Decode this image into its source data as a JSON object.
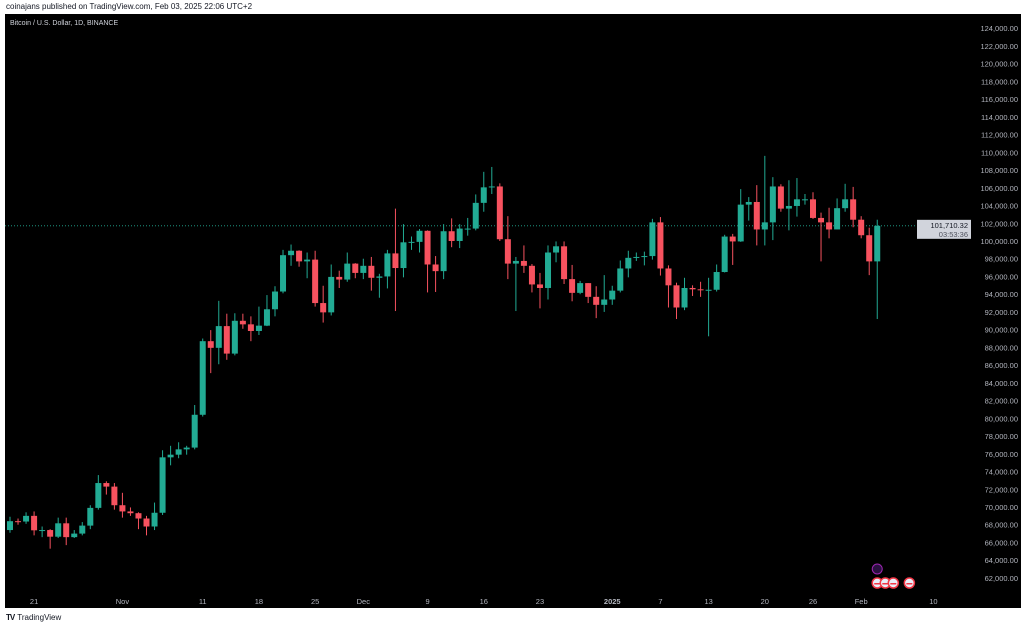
{
  "header": {
    "published": "coinajans published on TradingView.com, Feb 03, 2025 22:06 UTC+2"
  },
  "symbol_title": "Bitcoin / U.S. Dollar, 1D, BINANCE",
  "footer": {
    "brand": "TradingView",
    "logo_icon": "tradingview-logo-icon"
  },
  "colors": {
    "up": "#22ab94",
    "down": "#f7525f",
    "background": "#000000",
    "axis_text": "#b2b5be"
  },
  "chart_data": {
    "type": "candlestick",
    "title": "Bitcoin / U.S. Dollar, 1D, BINANCE",
    "ylim": [
      60300,
      125600
    ],
    "y_ticks": [
      "62,000.00",
      "64,000.00",
      "66,000.00",
      "68,000.00",
      "70,000.00",
      "72,000.00",
      "74,000.00",
      "76,000.00",
      "78,000.00",
      "80,000.00",
      "82,000.00",
      "84,000.00",
      "86,000.00",
      "88,000.00",
      "90,000.00",
      "92,000.00",
      "94,000.00",
      "96,000.00",
      "98,000.00",
      "100,000.00",
      "102,000.00",
      "104,000.00",
      "106,000.00",
      "108,000.00",
      "110,000.00",
      "112,000.00",
      "114,000.00",
      "116,000.00",
      "118,000.00",
      "120,000.00",
      "122,000.00",
      "124,000.00"
    ],
    "x_ticks": [
      {
        "label": "21",
        "date": "2024-10-21"
      },
      {
        "label": "Nov",
        "date": "2024-11-01"
      },
      {
        "label": "11",
        "date": "2024-11-11"
      },
      {
        "label": "18",
        "date": "2024-11-18"
      },
      {
        "label": "25",
        "date": "2024-11-25"
      },
      {
        "label": "Dec",
        "date": "2024-12-01"
      },
      {
        "label": "9",
        "date": "2024-12-09"
      },
      {
        "label": "16",
        "date": "2024-12-16"
      },
      {
        "label": "23",
        "date": "2024-12-23"
      },
      {
        "label": "2025",
        "date": "2025-01-01",
        "bold": true
      },
      {
        "label": "7",
        "date": "2025-01-07"
      },
      {
        "label": "13",
        "date": "2025-01-13"
      },
      {
        "label": "20",
        "date": "2025-01-20"
      },
      {
        "label": "26",
        "date": "2025-01-26"
      },
      {
        "label": "Feb",
        "date": "2025-02-01"
      },
      {
        "label": "10",
        "date": "2025-02-10"
      }
    ],
    "last_price": {
      "value": 101710.32,
      "label": "101,710.32",
      "countdown": "03:53:36"
    },
    "start_date": "2024-10-18",
    "ohlc": [
      [
        67400,
        68900,
        67100,
        68400
      ],
      [
        68400,
        68700,
        68000,
        68360
      ],
      [
        68360,
        69400,
        68100,
        69000
      ],
      [
        69000,
        69500,
        66800,
        67370
      ],
      [
        67370,
        67800,
        66600,
        67400
      ],
      [
        67400,
        67500,
        65300,
        66650
      ],
      [
        66650,
        68800,
        66500,
        68160
      ],
      [
        68160,
        68800,
        65700,
        66600
      ],
      [
        66600,
        67400,
        66500,
        67000
      ],
      [
        67000,
        68300,
        66800,
        67900
      ],
      [
        67900,
        70200,
        67500,
        69900
      ],
      [
        69900,
        73600,
        69700,
        72700
      ],
      [
        72700,
        72900,
        71400,
        72300
      ],
      [
        72300,
        72700,
        69700,
        70200
      ],
      [
        70200,
        71600,
        68800,
        69500
      ],
      [
        69500,
        69950,
        69000,
        69300
      ],
      [
        69300,
        69400,
        67500,
        68700
      ],
      [
        68700,
        69000,
        66800,
        67800
      ],
      [
        67800,
        70500,
        67400,
        69350
      ],
      [
        69350,
        76400,
        69100,
        75600
      ],
      [
        75600,
        76900,
        74700,
        75900
      ],
      [
        75900,
        77300,
        75500,
        76500
      ],
      [
        76500,
        76900,
        75900,
        76700
      ],
      [
        76700,
        81500,
        76500,
        80400
      ],
      [
        80400,
        89000,
        80200,
        88700
      ],
      [
        88700,
        89950,
        85100,
        87950
      ],
      [
        87950,
        93250,
        86100,
        90400
      ],
      [
        90400,
        91800,
        86600,
        87300
      ],
      [
        87300,
        91850,
        87100,
        91000
      ],
      [
        91000,
        91800,
        90100,
        90600
      ],
      [
        90600,
        91500,
        88700,
        89850
      ],
      [
        89850,
        92600,
        89400,
        90450
      ],
      [
        90450,
        93900,
        90400,
        92300
      ],
      [
        92300,
        94900,
        91500,
        94300
      ],
      [
        94300,
        99000,
        94100,
        98400
      ],
      [
        98400,
        99600,
        97200,
        98900
      ],
      [
        98900,
        98950,
        97100,
        97700
      ],
      [
        97700,
        98700,
        95800,
        97900
      ],
      [
        97900,
        98900,
        92600,
        93000
      ],
      [
        93000,
        94950,
        90800,
        91950
      ],
      [
        91950,
        97350,
        91600,
        95950
      ],
      [
        95950,
        96650,
        94700,
        95650
      ],
      [
        95650,
        98700,
        95400,
        97450
      ],
      [
        97450,
        97500,
        95800,
        96400
      ],
      [
        96400,
        98000,
        95700,
        97200
      ],
      [
        97200,
        98200,
        94400,
        95850
      ],
      [
        95850,
        96300,
        93600,
        96000
      ],
      [
        96000,
        99000,
        94650,
        98600
      ],
      [
        98600,
        103650,
        92100,
        96950
      ],
      [
        96950,
        101900,
        95900,
        99850
      ],
      [
        99850,
        100500,
        99000,
        99900
      ],
      [
        99900,
        101350,
        98700,
        101150
      ],
      [
        101150,
        101200,
        94200,
        97350
      ],
      [
        97350,
        98300,
        94250,
        96600
      ],
      [
        96600,
        101900,
        95700,
        101100
      ],
      [
        101100,
        102550,
        99300,
        100000
      ],
      [
        100000,
        101900,
        99200,
        101400
      ],
      [
        101400,
        102600,
        100600,
        101400
      ],
      [
        101400,
        105250,
        101200,
        104300
      ],
      [
        104300,
        107800,
        103300,
        106050
      ],
      [
        106050,
        108350,
        105300,
        106150
      ],
      [
        106150,
        106500,
        100000,
        100200
      ],
      [
        100200,
        102800,
        95700,
        97450
      ],
      [
        97450,
        98200,
        92100,
        97750
      ],
      [
        97750,
        99500,
        96400,
        97200
      ],
      [
        97200,
        97400,
        94200,
        95100
      ],
      [
        95100,
        96400,
        92400,
        94700
      ],
      [
        94700,
        99500,
        93400,
        98700
      ],
      [
        98700,
        99950,
        97600,
        99400
      ],
      [
        99400,
        99950,
        95150,
        95700
      ],
      [
        95700,
        97300,
        93200,
        94150
      ],
      [
        94150,
        95500,
        94000,
        95250
      ],
      [
        95250,
        95250,
        93000,
        93700
      ],
      [
        93700,
        94900,
        91300,
        92800
      ],
      [
        92800,
        96150,
        92000,
        93400
      ],
      [
        93400,
        94950,
        92800,
        94400
      ],
      [
        94400,
        97800,
        94200,
        96900
      ],
      [
        96900,
        98900,
        95900,
        98100
      ],
      [
        98100,
        98700,
        97750,
        98200
      ],
      [
        98200,
        98800,
        97250,
        98300
      ],
      [
        98300,
        102500,
        97900,
        102100
      ],
      [
        102100,
        102700,
        96100,
        96900
      ],
      [
        96900,
        97250,
        92500,
        95000
      ],
      [
        95000,
        95300,
        91200,
        92500
      ],
      [
        92500,
        95850,
        92200,
        94700
      ],
      [
        94700,
        95000,
        93800,
        94550
      ],
      [
        94550,
        95400,
        93700,
        94500
      ],
      [
        94500,
        95850,
        89250,
        94500
      ],
      [
        94500,
        97350,
        94300,
        96500
      ],
      [
        96500,
        100700,
        96450,
        100500
      ],
      [
        100500,
        100800,
        97300,
        99950
      ],
      [
        99950,
        105850,
        99900,
        104100
      ],
      [
        104100,
        104950,
        102300,
        104400
      ],
      [
        104400,
        106300,
        99500,
        101300
      ],
      [
        101300,
        109600,
        99500,
        102100
      ],
      [
        102100,
        107200,
        100100,
        106150
      ],
      [
        106150,
        106400,
        103300,
        103650
      ],
      [
        103650,
        106850,
        101200,
        103950
      ],
      [
        103950,
        107100,
        102750,
        104700
      ],
      [
        104700,
        105300,
        104100,
        104700
      ],
      [
        104700,
        105500,
        102500,
        102600
      ],
      [
        102600,
        103200,
        97700,
        102100
      ],
      [
        102100,
        103750,
        100300,
        101300
      ],
      [
        101300,
        104800,
        101300,
        103700
      ],
      [
        103700,
        106450,
        103300,
        104700
      ],
      [
        104700,
        106100,
        101550,
        102400
      ],
      [
        102400,
        102800,
        100300,
        100650
      ],
      [
        100650,
        101500,
        96150,
        97700
      ],
      [
        97700,
        102400,
        91200,
        101710.32
      ]
    ],
    "events": [
      {
        "icon": "crypto-event-icon",
        "date": "2025-02-03"
      },
      {
        "icon": "us-flag-event-icon",
        "date": "2025-02-03"
      },
      {
        "icon": "us-flag-event-icon",
        "date": "2025-02-04"
      },
      {
        "icon": "us-flag-event-icon",
        "date": "2025-02-05"
      },
      {
        "icon": "us-flag-event-icon",
        "date": "2025-02-07"
      }
    ]
  }
}
